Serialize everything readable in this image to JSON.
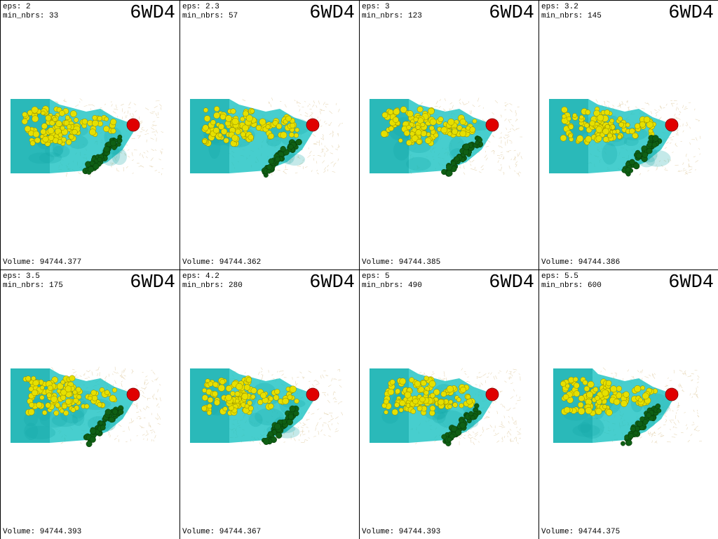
{
  "panels": [
    {
      "eps_label": "eps: 2",
      "min_nbrs_label": "min_nbrs: 33",
      "pdb_id": "6WD4",
      "volume_label": "Volume: 94744.377"
    },
    {
      "eps_label": "eps: 2.3",
      "min_nbrs_label": "min_nbrs: 57",
      "pdb_id": "6WD4",
      "volume_label": "Volume: 94744.362"
    },
    {
      "eps_label": "eps: 3",
      "min_nbrs_label": "min_nbrs: 123",
      "pdb_id": "6WD4",
      "volume_label": "Volume: 94744.385"
    },
    {
      "eps_label": "eps: 3.2",
      "min_nbrs_label": "min_nbrs: 145",
      "pdb_id": "6WD4",
      "volume_label": "Volume: 94744.386"
    },
    {
      "eps_label": "eps: 3.5",
      "min_nbrs_label": "min_nbrs: 175",
      "pdb_id": "6WD4",
      "volume_label": "Volume: 94744.393"
    },
    {
      "eps_label": "eps: 4.2",
      "min_nbrs_label": "min_nbrs: 280",
      "pdb_id": "6WD4",
      "volume_label": "Volume: 94744.367"
    },
    {
      "eps_label": "eps: 5",
      "min_nbrs_label": "min_nbrs: 490",
      "pdb_id": "6WD4",
      "volume_label": "Volume: 94744.393"
    },
    {
      "eps_label": "eps: 5.5",
      "min_nbrs_label": "min_nbrs: 600",
      "pdb_id": "6WD4",
      "volume_label": "Volume: 94744.375"
    }
  ],
  "colors": {
    "surface": "#1fc3c3",
    "surface_dark": "#13a7a7",
    "ligand_yellow": "#e6e000",
    "ligand_green": "#0f5f14",
    "ligand_red": "#e00000",
    "protein_wire": "#e2cfa8",
    "background": "#ffffff",
    "border": "#000000"
  }
}
